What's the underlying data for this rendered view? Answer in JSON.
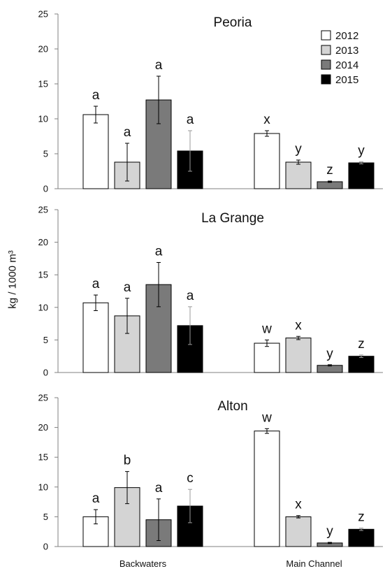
{
  "ylabel": "kg / 1000 m³",
  "legend": {
    "placement": "top-right",
    "entries": [
      {
        "label": "2012",
        "color": "#ffffff"
      },
      {
        "label": "2013",
        "color": "#d4d4d4"
      },
      {
        "label": "2014",
        "color": "#7a7a7a"
      },
      {
        "label": "2015",
        "color": "#000000"
      }
    ]
  },
  "chart_data": [
    {
      "type": "bar",
      "title": "Peoria",
      "categories": [
        "Backwaters",
        "Main Channel"
      ],
      "ylim": [
        0,
        25
      ],
      "yticks": [
        0,
        5,
        10,
        15,
        20,
        25
      ],
      "grid": false,
      "series": [
        {
          "name": "2012",
          "color": "#ffffff",
          "values": [
            10.6,
            7.9
          ],
          "errors": [
            1.2,
            0.4
          ],
          "letters": [
            "a",
            "x"
          ]
        },
        {
          "name": "2013",
          "color": "#d4d4d4",
          "values": [
            3.8,
            3.8
          ],
          "errors": [
            2.7,
            0.3
          ],
          "letters": [
            "a",
            "y"
          ]
        },
        {
          "name": "2014",
          "color": "#7a7a7a",
          "values": [
            12.7,
            1.0
          ],
          "errors": [
            3.4,
            0.1
          ],
          "letters": [
            "a",
            "z"
          ]
        },
        {
          "name": "2015",
          "color": "#000000",
          "values": [
            5.4,
            3.7
          ],
          "errors": [
            2.9,
            0.15
          ],
          "letters": [
            "a",
            "y"
          ]
        }
      ]
    },
    {
      "type": "bar",
      "title": "La Grange",
      "categories": [
        "Backwaters",
        "Main Channel"
      ],
      "ylim": [
        0,
        25
      ],
      "yticks": [
        0,
        5,
        10,
        15,
        20,
        25
      ],
      "grid": false,
      "series": [
        {
          "name": "2012",
          "color": "#ffffff",
          "values": [
            10.7,
            4.5
          ],
          "errors": [
            1.2,
            0.5
          ],
          "letters": [
            "a",
            "w"
          ]
        },
        {
          "name": "2013",
          "color": "#d4d4d4",
          "values": [
            8.7,
            5.3
          ],
          "errors": [
            2.7,
            0.25
          ],
          "letters": [
            "a",
            "x"
          ]
        },
        {
          "name": "2014",
          "color": "#7a7a7a",
          "values": [
            13.5,
            1.1
          ],
          "errors": [
            3.4,
            0.1
          ],
          "letters": [
            "a",
            "y"
          ]
        },
        {
          "name": "2015",
          "color": "#000000",
          "values": [
            7.2,
            2.5
          ],
          "errors": [
            2.9,
            0.2
          ],
          "letters": [
            "a",
            "z"
          ]
        }
      ]
    },
    {
      "type": "bar",
      "title": "Alton",
      "categories": [
        "Backwaters",
        "Main Channel"
      ],
      "ylim": [
        0,
        25
      ],
      "yticks": [
        0,
        5,
        10,
        15,
        20,
        25
      ],
      "grid": false,
      "series": [
        {
          "name": "2012",
          "color": "#ffffff",
          "values": [
            5.0,
            19.4
          ],
          "errors": [
            1.2,
            0.4
          ],
          "letters": [
            "a",
            "w"
          ]
        },
        {
          "name": "2013",
          "color": "#d4d4d4",
          "values": [
            9.9,
            5.0
          ],
          "errors": [
            2.7,
            0.2
          ],
          "letters": [
            "b",
            "x"
          ]
        },
        {
          "name": "2014",
          "color": "#7a7a7a",
          "values": [
            4.5,
            0.6
          ],
          "errors": [
            3.5,
            0.1
          ],
          "letters": [
            "a",
            "y"
          ]
        },
        {
          "name": "2015",
          "color": "#000000",
          "values": [
            6.8,
            2.9
          ],
          "errors": [
            2.8,
            0.2
          ],
          "letters": [
            "c",
            "z"
          ]
        }
      ]
    }
  ]
}
